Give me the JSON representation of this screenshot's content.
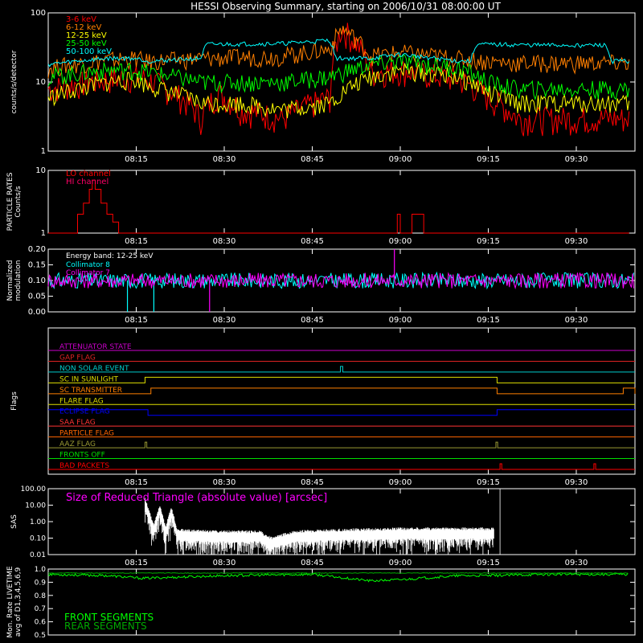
{
  "title": "HESSI Observing Summary, starting on 2006/10/31 08:00:00 UT",
  "time_ticks": [
    "08:15",
    "08:30",
    "08:45",
    "09:00",
    "09:15",
    "09:30"
  ],
  "time_tick_minutes": [
    15,
    30,
    45,
    60,
    75,
    90
  ],
  "time_range_minutes": [
    0,
    100
  ],
  "colors": {
    "background": "#000000",
    "axes": "#ffffff",
    "3-6 keV": "#ff0000",
    "6-12 keV": "#ff7f00",
    "12-25 keV": "#ffff00",
    "25-50 keV": "#00ff00",
    "50-100 keV": "#00ffff",
    "lo_channel": "#ff0000",
    "hi_channel": "#ff0066",
    "magenta": "#ff00ff",
    "cyan": "#00ffff",
    "front": "#00ff00",
    "rear": "#00aa00"
  },
  "chart_data": [
    {
      "id": "lightcurve",
      "type": "line",
      "ylabel": "counts/s/detector",
      "yscale": "log",
      "ylim": [
        1,
        100
      ],
      "yticks": [
        "1",
        "10",
        "100"
      ],
      "ytick_values": [
        1,
        10,
        100
      ],
      "legend_position": "top-left",
      "series": [
        {
          "name": "3-6 keV",
          "color": "#ff0000",
          "x": [
            0,
            10,
            15,
            17,
            26,
            29,
            33,
            40,
            48,
            50,
            55,
            60,
            70,
            75,
            80,
            90,
            99
          ],
          "y": [
            8,
            11,
            12,
            11,
            3,
            7,
            4,
            3,
            6,
            60,
            14,
            15,
            11,
            6,
            3,
            3,
            3
          ]
        },
        {
          "name": "6-12 keV",
          "color": "#ff7f00",
          "x": [
            0,
            10,
            15,
            17,
            26,
            33,
            40,
            48,
            50,
            55,
            60,
            70,
            75,
            80,
            90,
            99
          ],
          "y": [
            16,
            21,
            22,
            20,
            22,
            23,
            24,
            30,
            60,
            24,
            27,
            22,
            20,
            19,
            19,
            19
          ]
        },
        {
          "name": "12-25 keV",
          "color": "#ffff00",
          "x": [
            0,
            10,
            15,
            17,
            26,
            33,
            40,
            48,
            55,
            60,
            70,
            75,
            80,
            90,
            99
          ],
          "y": [
            6,
            10,
            11,
            9,
            5,
            5,
            4,
            5,
            12,
            15,
            12,
            7,
            5,
            5,
            5
          ]
        },
        {
          "name": "25-50 keV",
          "color": "#00ff00",
          "x": [
            0,
            10,
            15,
            17,
            26,
            33,
            40,
            48,
            55,
            60,
            70,
            75,
            80,
            90,
            99
          ],
          "y": [
            12,
            15,
            15,
            14,
            10,
            10,
            10,
            12,
            18,
            20,
            16,
            10,
            8,
            8,
            8
          ]
        },
        {
          "name": "50-100 keV",
          "color": "#00ffff",
          "x": [
            0,
            10,
            15,
            17,
            26,
            27,
            40,
            48,
            49,
            55,
            60,
            70,
            72,
            73,
            85,
            95,
            96,
            99
          ],
          "y": [
            18,
            22,
            22,
            20,
            22,
            35,
            36,
            40,
            22,
            22,
            25,
            20,
            20,
            35,
            34,
            34,
            20,
            20
          ]
        }
      ]
    },
    {
      "id": "particle",
      "type": "line",
      "ylabel": "PARTICLE RATES Counts/s",
      "yscale": "log",
      "ylim": [
        1,
        10
      ],
      "yticks": [
        "1",
        "10"
      ],
      "ytick_values": [
        1,
        10
      ],
      "series": [
        {
          "name": "LO channel",
          "color": "#ff0000",
          "x": [
            0,
            4,
            5,
            6,
            7,
            7.5,
            8,
            9,
            10,
            11,
            12,
            13,
            59,
            59.5,
            60,
            61,
            62,
            62.5,
            63,
            64,
            99
          ],
          "y": [
            1,
            1,
            2,
            3,
            5,
            7,
            5,
            3,
            2,
            1.5,
            1,
            1,
            1,
            2,
            1,
            1,
            2,
            2,
            2,
            1,
            1
          ]
        },
        {
          "name": "HI channel",
          "color": "#ff0066",
          "x": [],
          "y": []
        }
      ]
    },
    {
      "id": "modulation",
      "type": "line",
      "ylabel": "Normalized modulation",
      "ylim": [
        0,
        0.2
      ],
      "yticks": [
        "0.00",
        "0.05",
        "0.10",
        "0.15",
        "0.20"
      ],
      "ytick_values": [
        0,
        0.05,
        0.1,
        0.15,
        0.2
      ],
      "annotation": "Energy band: 12-25 keV",
      "series": [
        {
          "name": "Collimator 8",
          "color": "#00ffff",
          "typical": 0.1,
          "x": [
            13.5,
            18
          ],
          "y": [
            0,
            0
          ]
        },
        {
          "name": "Collimator 7",
          "color": "#ff00ff",
          "typical": 0.1,
          "x": [
            27.5,
            59
          ],
          "y": [
            0,
            0.2
          ]
        }
      ]
    },
    {
      "id": "flags",
      "type": "line",
      "ylabel": "Flags",
      "flags": [
        {
          "name": "ATTENUATOR STATE",
          "color": "#cc00cc",
          "segments": []
        },
        {
          "name": "GAP FLAG",
          "color": "#dd2222",
          "segments": []
        },
        {
          "name": "NON SOLAR EVENT",
          "color": "#00cccc",
          "segments": [
            [
              49.8,
              50.2
            ]
          ]
        },
        {
          "name": "SC IN SUNLIGHT",
          "color": "#dddd00",
          "segments": [
            [
              16.5,
              76.5
            ]
          ]
        },
        {
          "name": "SC TRANSMITTER",
          "color": "#ff7f00",
          "segments": [
            [
              17.5,
              76.5
            ],
            [
              98,
              100
            ]
          ]
        },
        {
          "name": "FLARE FLAG",
          "color": "#dddd00",
          "segments": []
        },
        {
          "name": "ECLIPSE FLAG",
          "color": "#0000ff",
          "inverted": true,
          "segments": [
            [
              0,
              17
            ],
            [
              76.5,
              100
            ]
          ]
        },
        {
          "name": "SAA FLAG",
          "color": "#ff3333",
          "segments": []
        },
        {
          "name": "PARTICLE FLAG",
          "color": "#ff6600",
          "segments": []
        },
        {
          "name": "AAZ FLAG",
          "color": "#999933",
          "segments": [
            [
              16.5,
              16.8
            ],
            [
              76.3,
              76.6
            ]
          ]
        },
        {
          "name": "FRONTS OFF",
          "color": "#00dd00",
          "segments": []
        },
        {
          "name": "BAD PACKETS",
          "color": "#ff0000",
          "segments": [
            [
              77,
              77.3
            ],
            [
              93,
              93.3
            ]
          ]
        }
      ]
    },
    {
      "id": "sas",
      "type": "line",
      "ylabel": "SAS",
      "yscale": "log",
      "ylim": [
        0.01,
        100
      ],
      "yticks": [
        "0.01",
        "0.10",
        "1.00",
        "10.00",
        "100.00"
      ],
      "ytick_values": [
        0.01,
        0.1,
        1,
        10,
        100
      ],
      "annotation": "Size of Reduced Triangle (absolute value) [arcsec]",
      "series": [
        {
          "name": "Reduced Triangle",
          "color": "#ffffff",
          "x": [
            16.5,
            18,
            19,
            20,
            21,
            22,
            28,
            36,
            38,
            42,
            50,
            60,
            70,
            76,
            77
          ],
          "y": [
            20,
            0.5,
            8,
            0.4,
            6,
            0.25,
            0.2,
            0.2,
            0.08,
            0.2,
            0.25,
            0.3,
            0.3,
            0.3,
            100
          ]
        }
      ]
    },
    {
      "id": "livetime",
      "type": "line",
      "ylabel": "Mon. Rate LIVETIME avg of D1,3,4,5,6,9",
      "ylim": [
        0.5,
        1.0
      ],
      "yticks": [
        "0.5",
        "0.6",
        "0.7",
        "0.8",
        "0.9",
        "1.0"
      ],
      "ytick_values": [
        0.5,
        0.6,
        0.7,
        0.8,
        0.9,
        1.0
      ],
      "legend_position": "bottom-left",
      "series": [
        {
          "name": "FRONT SEGMENTS",
          "color": "#00ff00",
          "x": [
            0,
            10,
            16,
            30,
            45,
            55,
            60,
            70,
            75,
            85,
            99
          ],
          "y": [
            0.96,
            0.95,
            0.93,
            0.95,
            0.96,
            0.91,
            0.92,
            0.95,
            0.95,
            0.96,
            0.96
          ]
        },
        {
          "name": "REAR SEGMENTS",
          "color": "#00aa00",
          "x": [
            0,
            99
          ],
          "y": [
            0.97,
            0.97
          ]
        }
      ]
    }
  ]
}
